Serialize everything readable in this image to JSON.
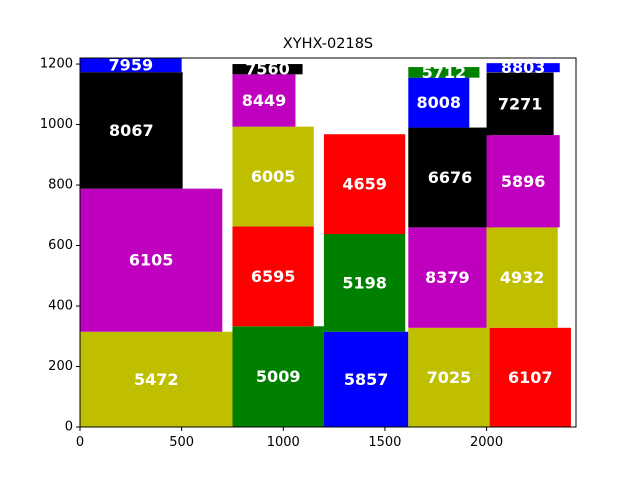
{
  "chart_data": {
    "type": "treemap",
    "title": "XYHX-0218S",
    "xlabel": "",
    "ylabel": "",
    "xlim": [
      0,
      2440
    ],
    "ylim": [
      0,
      1220
    ],
    "xticks": [
      0,
      500,
      1000,
      1500,
      2000
    ],
    "yticks": [
      0,
      200,
      400,
      600,
      800,
      1000,
      1200
    ],
    "grid": false,
    "legend": "none",
    "rects": [
      {
        "label": "5472",
        "x": 0,
        "y": 0,
        "w": 750,
        "h": 315,
        "color": "#bfbf00"
      },
      {
        "label": "6105",
        "x": 0,
        "y": 315,
        "w": 700,
        "h": 473,
        "color": "#bf00bf"
      },
      {
        "label": "8067",
        "x": 0,
        "y": 788,
        "w": 505,
        "h": 385,
        "color": "#000000"
      },
      {
        "label": "7959",
        "x": 0,
        "y": 1173,
        "w": 500,
        "h": 47,
        "color": "#0000ff"
      },
      {
        "label": "5009",
        "x": 750,
        "y": 0,
        "w": 450,
        "h": 333,
        "color": "#008000"
      },
      {
        "label": "6595",
        "x": 750,
        "y": 333,
        "w": 400,
        "h": 330,
        "color": "#ff0000"
      },
      {
        "label": "6005",
        "x": 750,
        "y": 663,
        "w": 400,
        "h": 330,
        "color": "#bfbf00"
      },
      {
        "label": "8449",
        "x": 750,
        "y": 993,
        "w": 310,
        "h": 173,
        "color": "#bf00bf"
      },
      {
        "label": "7560",
        "x": 750,
        "y": 1166,
        "w": 345,
        "h": 34,
        "color": "#000000"
      },
      {
        "label": "5857",
        "x": 1200,
        "y": 0,
        "w": 415,
        "h": 315,
        "color": "#0000ff"
      },
      {
        "label": "5198",
        "x": 1200,
        "y": 315,
        "w": 400,
        "h": 323,
        "color": "#008000"
      },
      {
        "label": "4659",
        "x": 1200,
        "y": 638,
        "w": 400,
        "h": 330,
        "color": "#ff0000"
      },
      {
        "label": "7025",
        "x": 1615,
        "y": 0,
        "w": 400,
        "h": 328,
        "color": "#bfbf00"
      },
      {
        "label": "8379",
        "x": 1615,
        "y": 328,
        "w": 385,
        "h": 332,
        "color": "#bf00bf"
      },
      {
        "label": "6676",
        "x": 1615,
        "y": 660,
        "w": 410,
        "h": 330,
        "color": "#000000"
      },
      {
        "label": "8008",
        "x": 1615,
        "y": 990,
        "w": 300,
        "h": 165,
        "color": "#0000ff"
      },
      {
        "label": "5712",
        "x": 1615,
        "y": 1155,
        "w": 350,
        "h": 35,
        "color": "#008000"
      },
      {
        "label": "6107",
        "x": 2015,
        "y": 0,
        "w": 400,
        "h": 328,
        "color": "#ff0000"
      },
      {
        "label": "4932",
        "x": 2000,
        "y": 328,
        "w": 350,
        "h": 332,
        "color": "#bfbf00"
      },
      {
        "label": "5896",
        "x": 2000,
        "y": 660,
        "w": 360,
        "h": 305,
        "color": "#bf00bf"
      },
      {
        "label": "7271",
        "x": 2000,
        "y": 965,
        "w": 330,
        "h": 207,
        "color": "#000000"
      },
      {
        "label": "8803",
        "x": 2000,
        "y": 1173,
        "w": 360,
        "h": 30,
        "color": "#0000ff"
      }
    ]
  }
}
